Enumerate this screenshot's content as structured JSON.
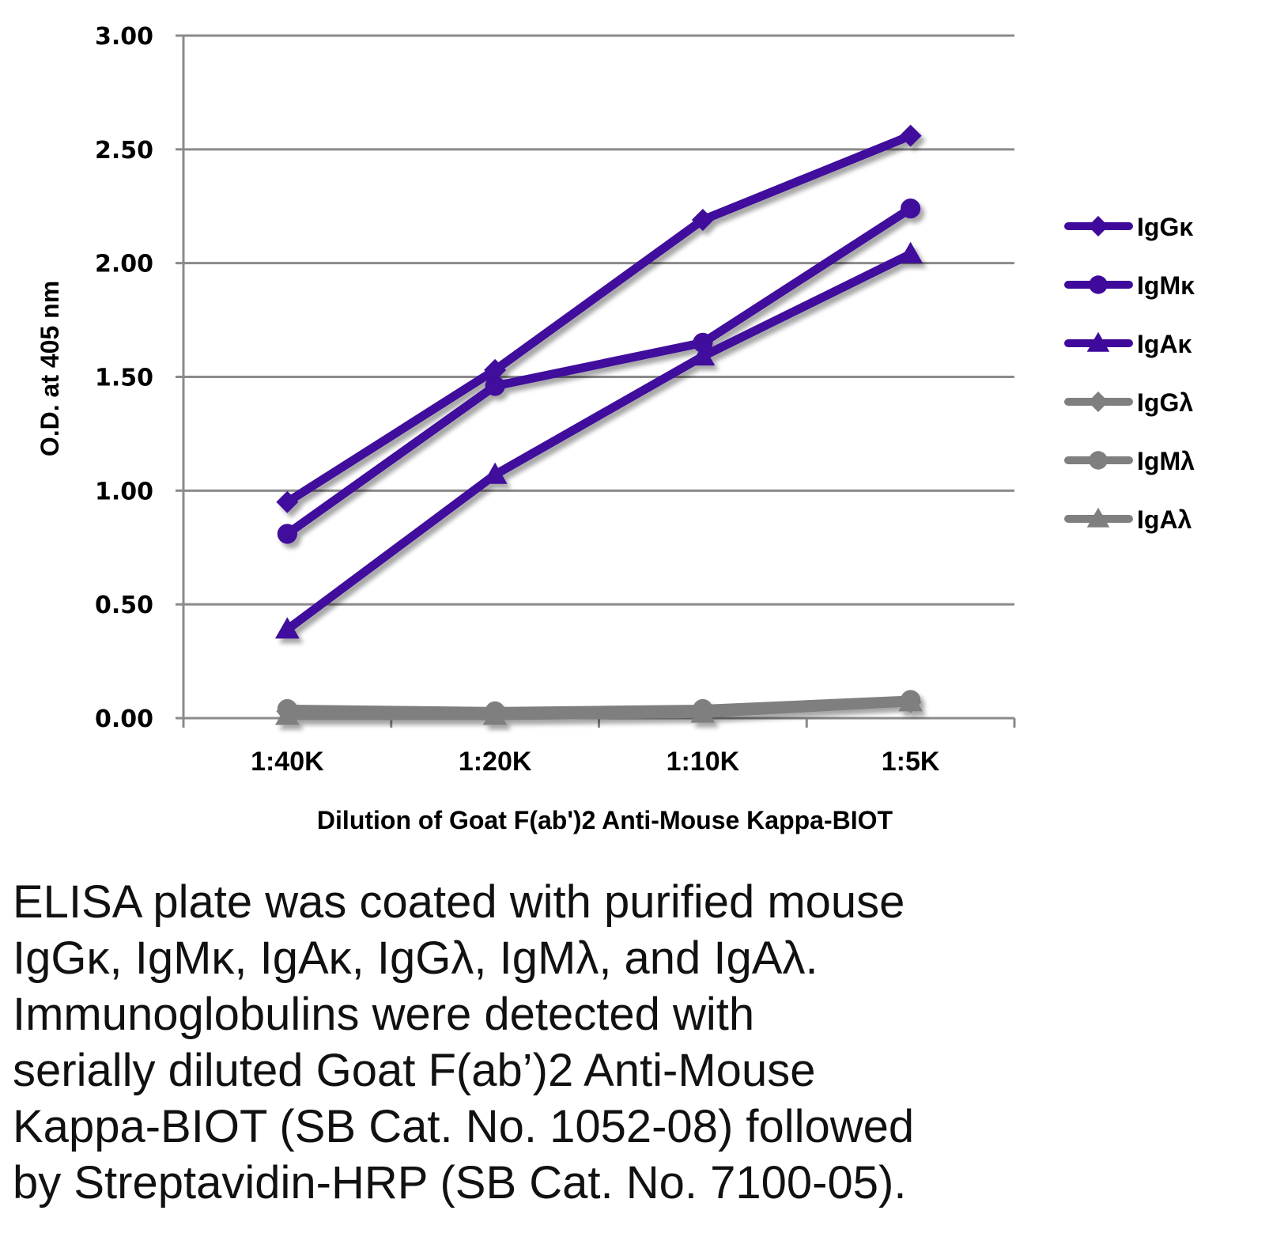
{
  "chart_data": {
    "type": "line",
    "title": "",
    "xlabel": "Dilution of Goat F(ab')2 Anti-Mouse Kappa-BIOT",
    "ylabel": "O.D. at 405 nm",
    "categories": [
      "1:40K",
      "1:20K",
      "1:10K",
      "1:5K"
    ],
    "ylim": [
      0,
      3.0
    ],
    "yticks": [
      "0.00",
      "0.50",
      "1.00",
      "1.50",
      "2.00",
      "2.50",
      "3.00"
    ],
    "grid": true,
    "legend_position": "right",
    "series": [
      {
        "name": "IgGκ",
        "marker": "diamond",
        "color": "#3f0a9c",
        "values": [
          0.95,
          1.53,
          2.19,
          2.56
        ]
      },
      {
        "name": "IgMκ",
        "marker": "circle",
        "color": "#3f0a9c",
        "values": [
          0.81,
          1.46,
          1.65,
          2.24
        ]
      },
      {
        "name": "IgAκ",
        "marker": "triangle",
        "color": "#3f0a9c",
        "values": [
          0.39,
          1.07,
          1.59,
          2.04
        ]
      },
      {
        "name": "IgGλ",
        "marker": "diamond",
        "color": "#7f7f7f",
        "values": [
          0.03,
          0.02,
          0.03,
          0.07
        ]
      },
      {
        "name": "IgMλ",
        "marker": "circle",
        "color": "#7f7f7f",
        "values": [
          0.04,
          0.03,
          0.04,
          0.08
        ]
      },
      {
        "name": "IgAλ",
        "marker": "triangle",
        "color": "#7f7f7f",
        "values": [
          0.01,
          0.01,
          0.02,
          0.07
        ]
      }
    ]
  },
  "caption": {
    "lines": [
      "ELISA plate was coated with purified mouse",
      "IgGκ, IgMκ, IgAκ, IgGλ, IgMλ, and IgAλ.",
      "Immunoglobulins were detected with",
      "serially diluted Goat F(ab’)2 Anti-Mouse",
      "Kappa-BIOT (SB Cat. No. 1052-08) followed",
      "by Streptavidin-HRP (SB Cat. No. 7100-05)."
    ]
  }
}
